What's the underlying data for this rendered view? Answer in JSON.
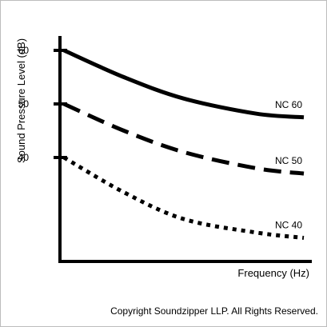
{
  "chart_data": {
    "type": "line",
    "title": "",
    "xlabel": "Frequency (Hz)",
    "ylabel": "Sound Pressure Level (dB)",
    "yticks": [
      60,
      50,
      40
    ],
    "series": [
      {
        "name": "NC 60",
        "style": "solid",
        "points": [
          [
            0,
            60
          ],
          [
            0.25,
            55
          ],
          [
            0.5,
            51
          ],
          [
            0.8,
            48.2
          ],
          [
            1.0,
            47.5
          ]
        ]
      },
      {
        "name": "NC 50",
        "style": "dashed",
        "points": [
          [
            0,
            50
          ],
          [
            0.25,
            45
          ],
          [
            0.5,
            41
          ],
          [
            0.8,
            38
          ],
          [
            1.0,
            37
          ]
        ]
      },
      {
        "name": "NC 40",
        "style": "dotted",
        "points": [
          [
            0,
            40
          ],
          [
            0.25,
            33.5
          ],
          [
            0.5,
            28.5
          ],
          [
            0.8,
            26
          ],
          [
            1.0,
            25
          ]
        ]
      }
    ]
  },
  "footer": {
    "copyright": "Copyright Soundzipper LLP. All Rights Reserved."
  },
  "colors": {
    "line": "#000000",
    "border": "#bdbdbd",
    "background": "#ffffff"
  }
}
